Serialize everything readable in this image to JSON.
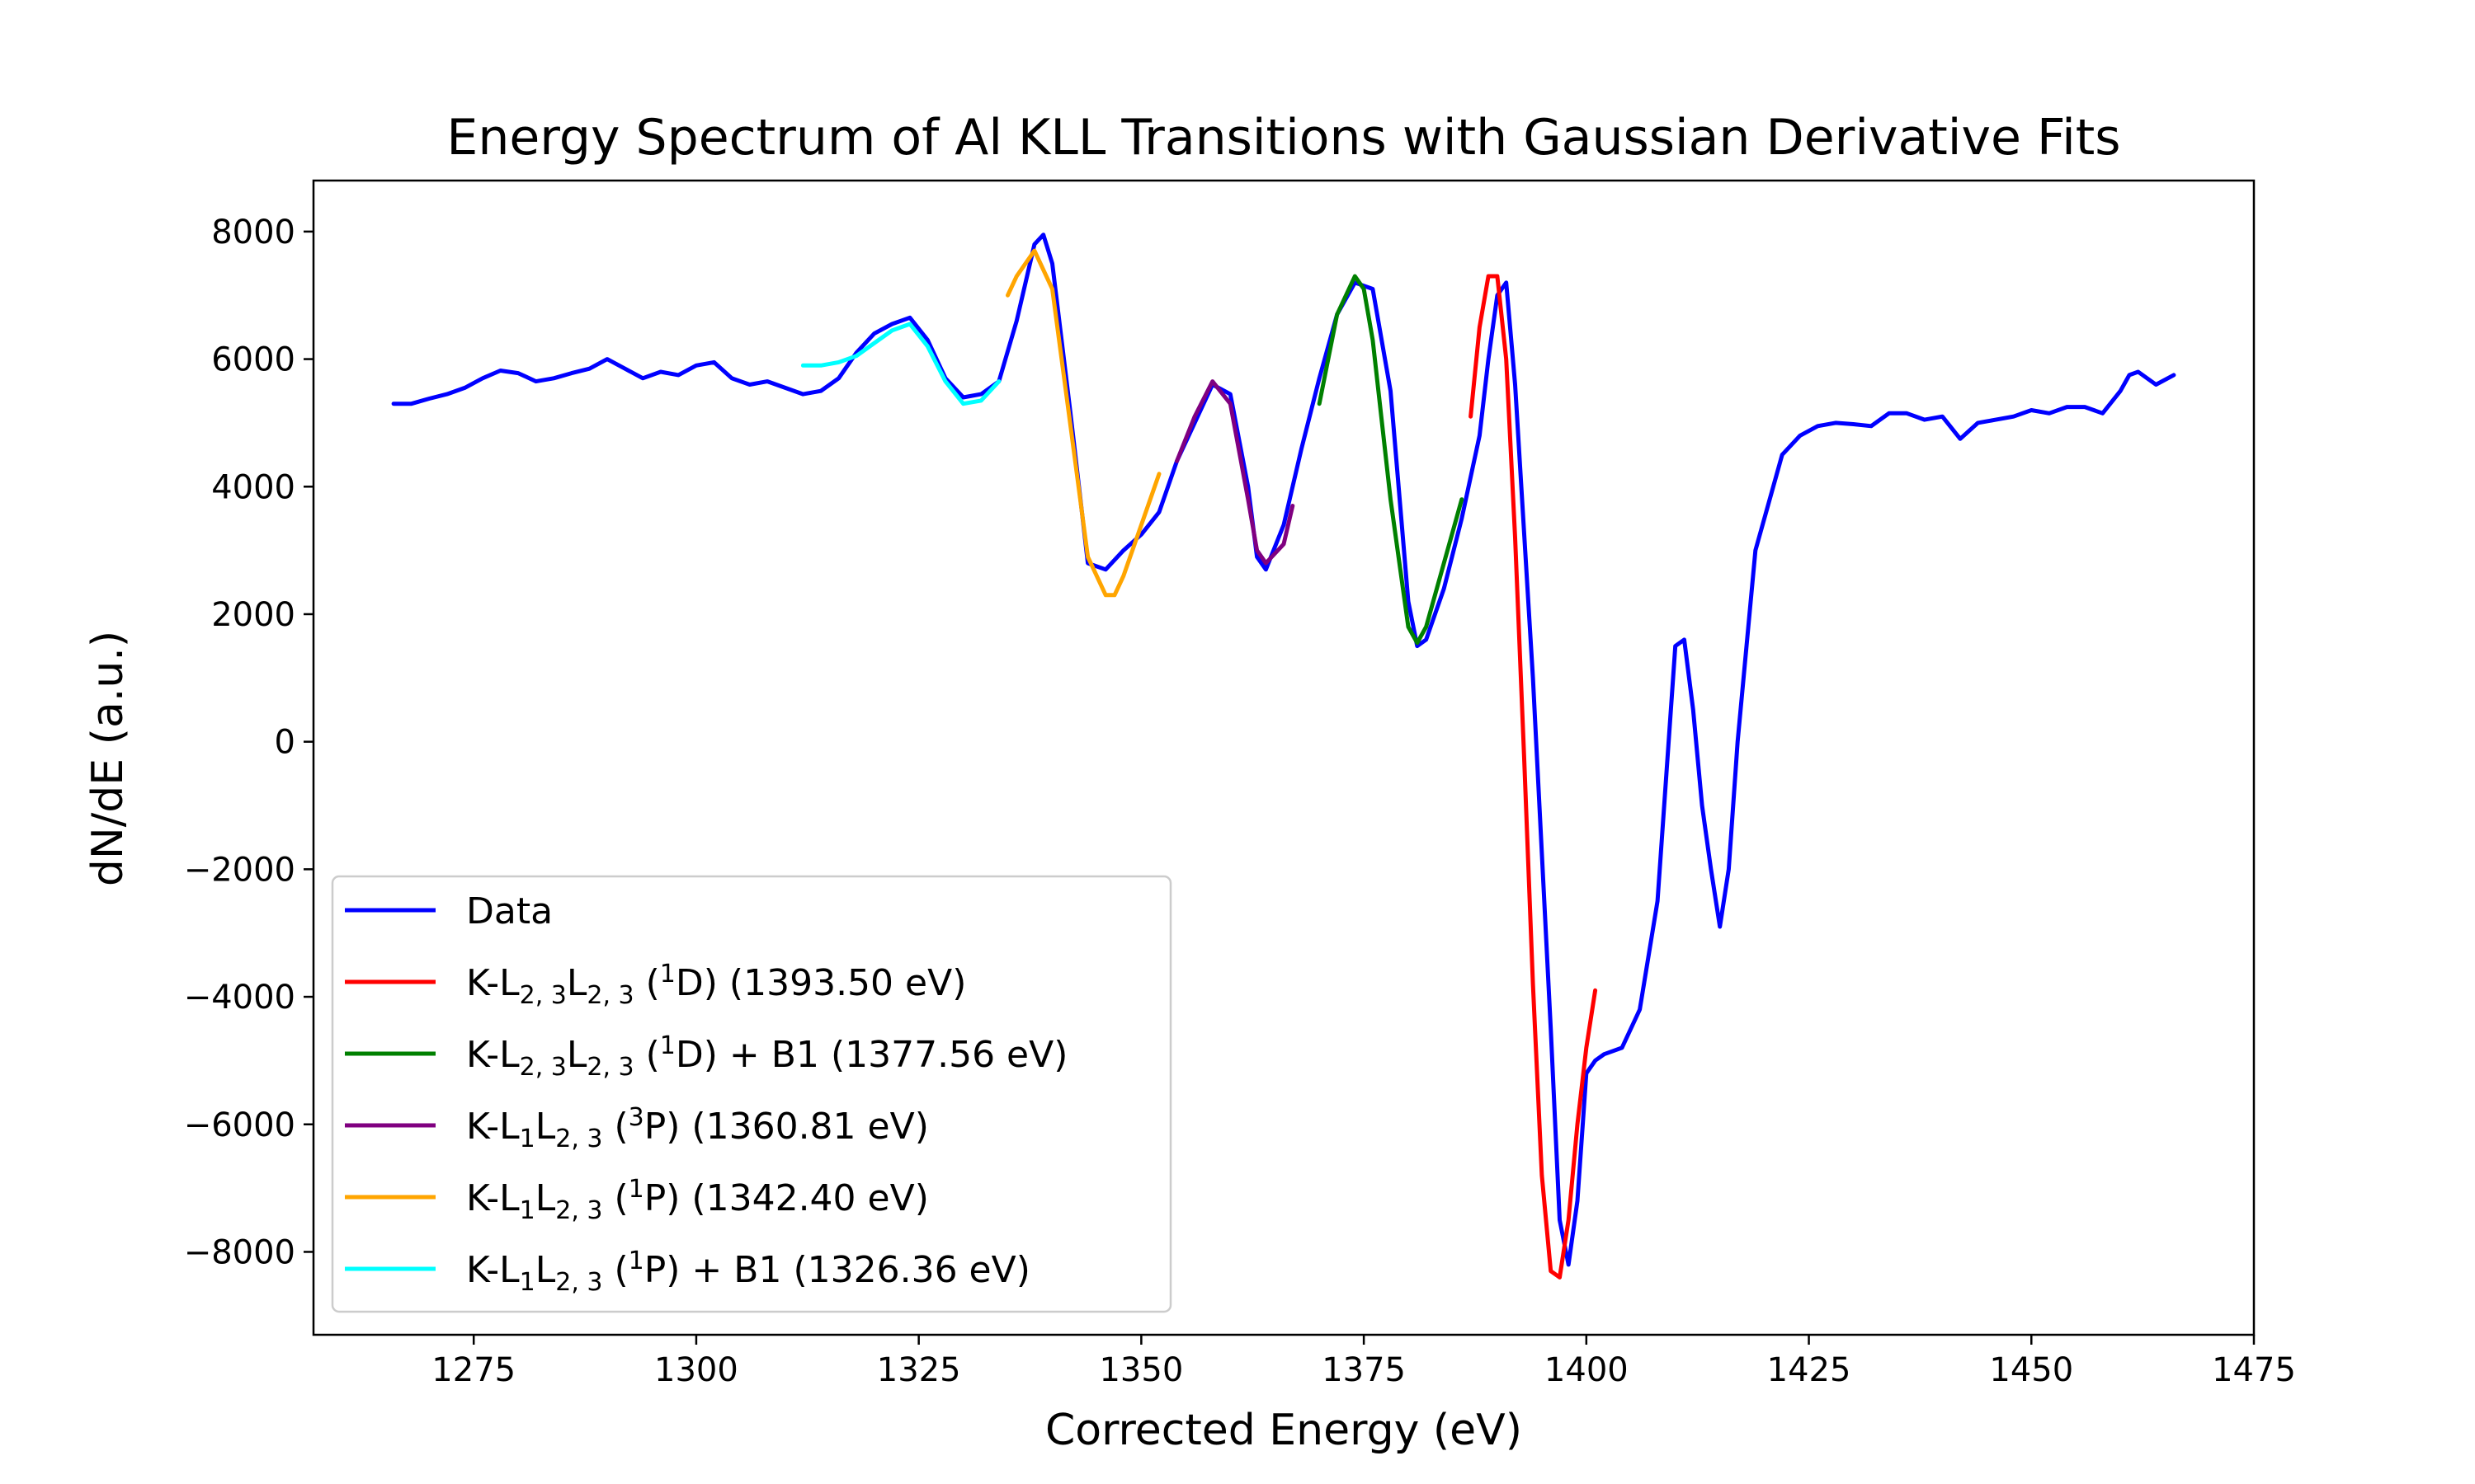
{
  "chart_data": {
    "type": "line",
    "title": "Energy Spectrum of Al KLL Transitions with Gaussian Derivative Fits",
    "xlabel": "Corrected Energy (eV)",
    "ylabel": "dN/dE (a.u.)",
    "xlim": [
      1257,
      1475
    ],
    "ylim": [
      -9300,
      8800
    ],
    "xticks": [
      1275,
      1300,
      1325,
      1350,
      1375,
      1400,
      1425,
      1450,
      1475
    ],
    "xtick_labels": [
      "1275",
      "1300",
      "1325",
      "1350",
      "1375",
      "1400",
      "1425",
      "1450",
      "1475"
    ],
    "yticks": [
      8000,
      6000,
      4000,
      2000,
      0,
      -2000,
      -4000,
      -6000,
      -8000
    ],
    "ytick_labels": [
      "8000",
      "6000",
      "4000",
      "2000",
      "0",
      "−2000",
      "−4000",
      "−6000",
      "−8000"
    ],
    "grid": false,
    "legend_position": "lower-left",
    "series": [
      {
        "name": "Data",
        "color": "#0000ff",
        "x": [
          1266,
          1268,
          1270,
          1272,
          1274,
          1276,
          1278,
          1280,
          1282,
          1284,
          1286,
          1288,
          1290,
          1292,
          1294,
          1296,
          1298,
          1300,
          1302,
          1304,
          1306,
          1308,
          1310,
          1312,
          1314,
          1316,
          1318,
          1320,
          1322,
          1324,
          1326,
          1328,
          1330,
          1332,
          1334,
          1336,
          1338,
          1339,
          1340,
          1342,
          1344,
          1346,
          1348,
          1350,
          1352,
          1354,
          1356,
          1358,
          1360,
          1362,
          1363,
          1364,
          1366,
          1368,
          1370,
          1372,
          1374,
          1376,
          1378,
          1380,
          1381,
          1382,
          1384,
          1386,
          1388,
          1389,
          1390,
          1391,
          1392,
          1394,
          1396,
          1397,
          1398,
          1399,
          1400,
          1401,
          1402,
          1404,
          1406,
          1408,
          1409,
          1410,
          1411,
          1412,
          1413,
          1414,
          1415,
          1416,
          1417,
          1418,
          1419,
          1420,
          1422,
          1424,
          1426,
          1428,
          1430,
          1432,
          1434,
          1436,
          1438,
          1440,
          1442,
          1444,
          1446,
          1448,
          1450,
          1452,
          1454,
          1456,
          1458,
          1460,
          1461,
          1462,
          1464,
          1466
        ],
        "y": [
          5300,
          5300,
          5380,
          5450,
          5550,
          5700,
          5820,
          5780,
          5650,
          5700,
          5780,
          5850,
          6000,
          5850,
          5700,
          5800,
          5750,
          5900,
          5950,
          5700,
          5600,
          5650,
          5550,
          5450,
          5500,
          5700,
          6100,
          6400,
          6550,
          6650,
          6300,
          5700,
          5400,
          5450,
          5650,
          6600,
          7800,
          7950,
          7500,
          5200,
          2800,
          2700,
          3000,
          3250,
          3600,
          4400,
          5000,
          5600,
          5450,
          4000,
          2900,
          2700,
          3400,
          4600,
          5700,
          6700,
          7200,
          7100,
          5500,
          2200,
          1500,
          1600,
          2400,
          3500,
          4800,
          6000,
          7000,
          7200,
          5600,
          1000,
          -4500,
          -7500,
          -8200,
          -7200,
          -5200,
          -5000,
          -4900,
          -4800,
          -4200,
          -2500,
          -500,
          1500,
          1600,
          500,
          -1000,
          -2000,
          -2900,
          -2000,
          0,
          1500,
          3000,
          3500,
          4500,
          4800,
          4950,
          5000,
          4980,
          4950,
          5150,
          5150,
          5050,
          5100,
          4750,
          5000,
          5050,
          5100,
          5200,
          5150,
          5250,
          5250,
          5150,
          5500,
          5750,
          5800,
          5600,
          5750
        ]
      },
      {
        "name": "K-L2,3L2,3 (1D) (1393.50 eV)",
        "color": "#ff0000",
        "x": [
          1387,
          1388,
          1389,
          1390,
          1391,
          1392,
          1393,
          1394,
          1395,
          1396,
          1397,
          1398,
          1399,
          1400,
          1401
        ],
        "y": [
          5100,
          6500,
          7300,
          7300,
          6000,
          3200,
          -200,
          -3800,
          -6800,
          -8300,
          -8400,
          -7500,
          -6000,
          -4800,
          -3900
        ]
      },
      {
        "name": "K-L2,3L2,3 (1D) + B1 (1377.56 eV)",
        "color": "#008000",
        "x": [
          1370,
          1372,
          1374,
          1375,
          1376,
          1378,
          1380,
          1381,
          1382,
          1384,
          1386
        ],
        "y": [
          5300,
          6700,
          7300,
          7100,
          6300,
          3800,
          1800,
          1550,
          1800,
          2800,
          3800
        ]
      },
      {
        "name": "K-L1L2,3 (3P) (1360.81 eV)",
        "color": "#800080",
        "x": [
          1354,
          1356,
          1358,
          1360,
          1362,
          1363,
          1364,
          1366,
          1367
        ],
        "y": [
          4400,
          5100,
          5650,
          5300,
          3800,
          3000,
          2800,
          3100,
          3700
        ]
      },
      {
        "name": "K-L1L2,3 (1P) (1342.40 eV)",
        "color": "#ffa500",
        "x": [
          1335,
          1336,
          1338,
          1340,
          1342,
          1344,
          1346,
          1347,
          1348,
          1350,
          1352
        ],
        "y": [
          7000,
          7300,
          7700,
          7100,
          5000,
          2900,
          2300,
          2300,
          2600,
          3400,
          4200
        ]
      },
      {
        "name": "K-L1L2,3 (1P) + B1 (1326.36 eV)",
        "color": "#00ffff",
        "x": [
          1312,
          1314,
          1316,
          1318,
          1320,
          1322,
          1324,
          1326,
          1328,
          1330,
          1332,
          1334
        ],
        "y": [
          5900,
          5900,
          5950,
          6050,
          6250,
          6450,
          6550,
          6200,
          5650,
          5300,
          5350,
          5650
        ]
      }
    ]
  },
  "legend": {
    "entries": [
      {
        "key": "data",
        "prefix": "Data",
        "parts": []
      },
      {
        "key": "red",
        "parts": [
          {
            "t": "K-L"
          },
          {
            "t": "2, 3",
            "sub": true
          },
          {
            "t": "L"
          },
          {
            "t": "2, 3",
            "sub": true
          },
          {
            "t": " ("
          },
          {
            "t": "1",
            "sup": true
          },
          {
            "t": "D) (1393.50 eV)"
          }
        ]
      },
      {
        "key": "green",
        "parts": [
          {
            "t": "K-L"
          },
          {
            "t": "2, 3",
            "sub": true
          },
          {
            "t": "L"
          },
          {
            "t": "2, 3",
            "sub": true
          },
          {
            "t": " ("
          },
          {
            "t": "1",
            "sup": true
          },
          {
            "t": "D) + B1 (1377.56 eV)"
          }
        ]
      },
      {
        "key": "purple",
        "parts": [
          {
            "t": "K-L"
          },
          {
            "t": "1",
            "sub": true
          },
          {
            "t": "L"
          },
          {
            "t": "2, 3",
            "sub": true
          },
          {
            "t": " ("
          },
          {
            "t": "3",
            "sup": true
          },
          {
            "t": "P) (1360.81 eV)"
          }
        ]
      },
      {
        "key": "orange",
        "parts": [
          {
            "t": "K-L"
          },
          {
            "t": "1",
            "sub": true
          },
          {
            "t": "L"
          },
          {
            "t": "2, 3",
            "sub": true
          },
          {
            "t": " ("
          },
          {
            "t": "1",
            "sup": true
          },
          {
            "t": "P) (1342.40 eV)"
          }
        ]
      },
      {
        "key": "cyan",
        "parts": [
          {
            "t": "K-L"
          },
          {
            "t": "1",
            "sub": true
          },
          {
            "t": "L"
          },
          {
            "t": "2, 3",
            "sub": true
          },
          {
            "t": " ("
          },
          {
            "t": "1",
            "sup": true
          },
          {
            "t": "P) + B1 (1326.36 eV)"
          }
        ]
      }
    ]
  }
}
